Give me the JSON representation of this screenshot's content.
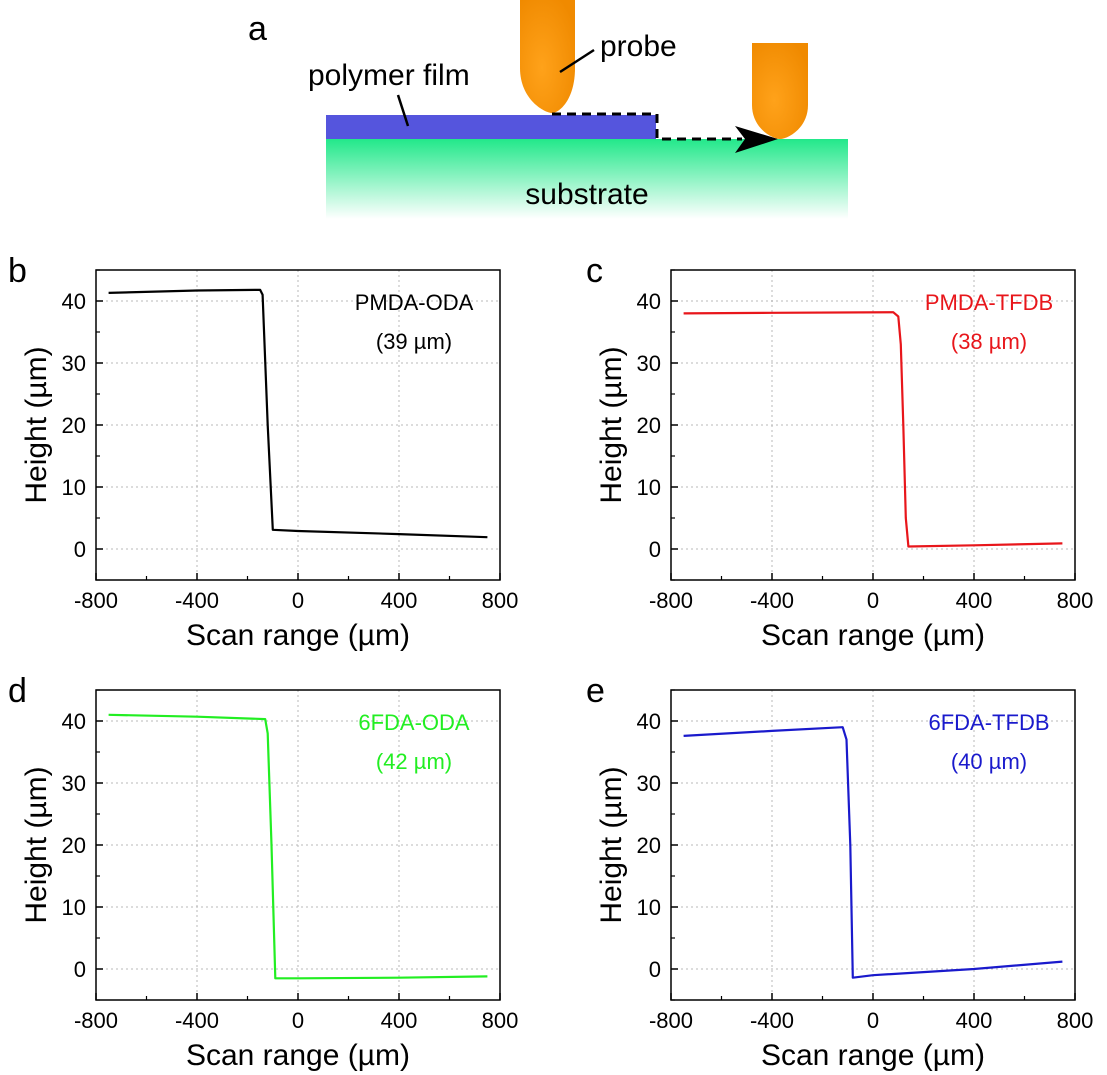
{
  "schematic": {
    "panel_letter": "a",
    "film_label": "polymer film",
    "probe_label": "probe",
    "substrate_label": "substrate",
    "colors": {
      "film": "#5555dd",
      "substrate_top": "#22e88a",
      "probe": "#ff8c00"
    }
  },
  "chart_data": [
    {
      "type": "line",
      "panel_letter": "b",
      "annotation": [
        "PMDA-ODA",
        "(39 µm)"
      ],
      "annotation_color": "#000000",
      "color": "#000000",
      "xlabel": "Scan range (µm)",
      "ylabel": "Height (µm)",
      "xlim": [
        -800,
        800
      ],
      "ylim": [
        -5,
        45
      ],
      "xticks": [
        -800,
        -400,
        0,
        400,
        800
      ],
      "yticks": [
        0,
        10,
        20,
        30,
        40
      ],
      "grid": true,
      "x": [
        -750,
        -400,
        -150,
        -140,
        -120,
        -100,
        0,
        400,
        750
      ],
      "y": [
        41.3,
        41.7,
        41.8,
        41.0,
        20,
        3.1,
        2.9,
        2.4,
        1.9
      ]
    },
    {
      "type": "line",
      "panel_letter": "c",
      "annotation": [
        "PMDA-TFDB",
        "(38 µm)"
      ],
      "annotation_color": "#e8161b",
      "color": "#e8161b",
      "xlabel": "Scan range (µm)",
      "ylabel": "Height (µm)",
      "xlim": [
        -800,
        800
      ],
      "ylim": [
        -5,
        45
      ],
      "xticks": [
        -800,
        -400,
        0,
        400,
        800
      ],
      "yticks": [
        0,
        10,
        20,
        30,
        40
      ],
      "grid": true,
      "x": [
        -750,
        -400,
        80,
        100,
        110,
        120,
        130,
        140,
        400,
        750
      ],
      "y": [
        38.0,
        38.1,
        38.2,
        37.5,
        33,
        20,
        5,
        0.4,
        0.6,
        0.9
      ]
    },
    {
      "type": "line",
      "panel_letter": "d",
      "annotation": [
        "6FDA-ODA",
        "(42 µm)"
      ],
      "annotation_color": "#22ee22",
      "color": "#22ee22",
      "xlabel": "Scan range (µm)",
      "ylabel": "Height (µm)",
      "xlim": [
        -800,
        800
      ],
      "ylim": [
        -5,
        45
      ],
      "xticks": [
        -800,
        -400,
        0,
        400,
        800
      ],
      "yticks": [
        0,
        10,
        20,
        30,
        40
      ],
      "grid": true,
      "x": [
        -750,
        -400,
        -130,
        -120,
        -105,
        -90,
        0,
        400,
        750
      ],
      "y": [
        41.0,
        40.7,
        40.3,
        38,
        20,
        -1.5,
        -1.5,
        -1.4,
        -1.2
      ]
    },
    {
      "type": "line",
      "panel_letter": "e",
      "annotation": [
        "6FDA-TFDB",
        "(40 µm)"
      ],
      "annotation_color": "#1a1acc",
      "color": "#1a1acc",
      "xlabel": "Scan range (µm)",
      "ylabel": "Height (µm)",
      "xlim": [
        -800,
        800
      ],
      "ylim": [
        -5,
        45
      ],
      "xticks": [
        -800,
        -400,
        0,
        400,
        800
      ],
      "yticks": [
        0,
        10,
        20,
        30,
        40
      ],
      "grid": true,
      "x": [
        -750,
        -400,
        -120,
        -105,
        -90,
        -80,
        0,
        400,
        750
      ],
      "y": [
        37.6,
        38.4,
        39.0,
        37,
        20,
        -1.4,
        -1.0,
        0.0,
        1.2
      ]
    }
  ]
}
